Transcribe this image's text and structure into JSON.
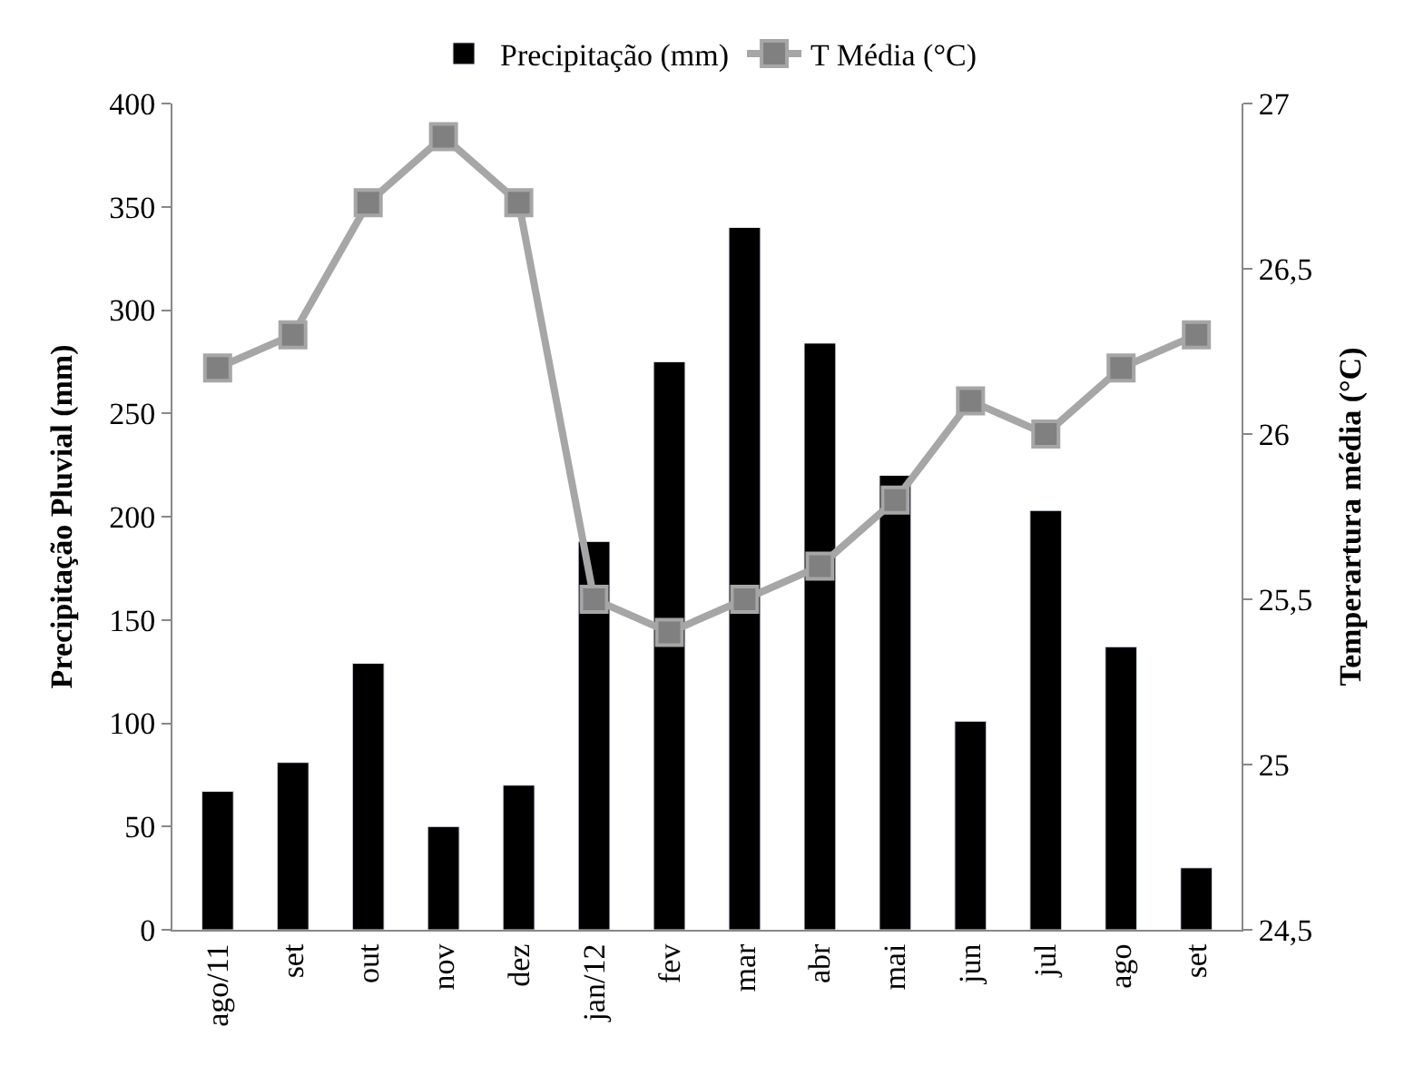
{
  "chart_data": {
    "type": "bar",
    "categories": [
      "ago/11",
      "set",
      "out",
      "nov",
      "dez",
      "jan/12",
      "fev",
      "mar",
      "abr",
      "mai",
      "jun",
      "jul",
      "ago",
      "set"
    ],
    "series": [
      {
        "name": "Precipitação (mm)",
        "color": "#000000",
        "values": [
          67,
          81,
          129,
          50,
          70,
          188,
          275,
          340,
          284,
          220,
          101,
          203,
          137,
          30
        ]
      },
      {
        "name": "T Média (°C)",
        "type": "line",
        "axis": "y2",
        "color": "#a6a6a6",
        "values": [
          26.2,
          26.3,
          26.7,
          26.9,
          26.7,
          25.5,
          25.4,
          25.5,
          25.6,
          25.8,
          26.1,
          26.0,
          26.2,
          26.3
        ]
      }
    ],
    "ylabel": "Precipitação Pluvial (mm)",
    "y2label": "Temperartura média (°C)",
    "ylim": [
      0,
      400
    ],
    "yticks": [
      0,
      50,
      100,
      150,
      200,
      250,
      300,
      350,
      400
    ],
    "y2lim": [
      24.5,
      27
    ],
    "y2ticks": [
      {
        "value": 24.5,
        "label": "24,5"
      },
      25,
      {
        "value": 25.5,
        "label": "25,5"
      },
      26,
      {
        "value": 26.5,
        "label": "26,5"
      },
      27
    ],
    "legend": "top",
    "marker": "square",
    "line_style": "solid"
  }
}
